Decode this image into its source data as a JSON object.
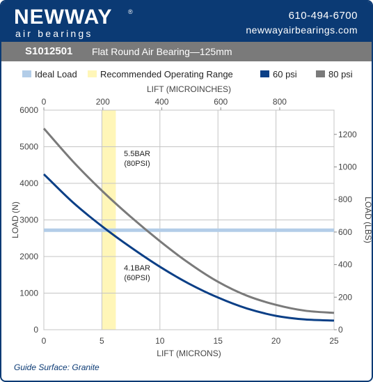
{
  "header": {
    "logo_text": "NEWWAY",
    "logo_reg": "®",
    "logo_sub": "air bearings",
    "phone": "610-494-6700",
    "website": "newwayairbearings.com"
  },
  "title": {
    "part_number": "S1012501",
    "description": "Flat Round Air Bearing—125mm"
  },
  "legend": [
    {
      "label": "Ideal Load",
      "color": "#b3cde8"
    },
    {
      "label": "Recommended Operating Range",
      "color": "#fff6b8"
    },
    {
      "label": "60 psi",
      "color": "#0b3f86"
    },
    {
      "label": "80 psi",
      "color": "#7a7a7a"
    }
  ],
  "footer": "Guide Surface: Granite",
  "chart_data": {
    "type": "line",
    "xlabel": "LIFT (MICRONS)",
    "xlim": [
      0,
      25
    ],
    "x_ticks": [
      0,
      5,
      10,
      15,
      20,
      25
    ],
    "ylabel": "LOAD (N)",
    "ylim": [
      0,
      6000
    ],
    "y_ticks": [
      0,
      1000,
      2000,
      3000,
      4000,
      5000,
      6000
    ],
    "top_axis": {
      "label": "LIFT (MICROINCHES)",
      "ticks": [
        0,
        200,
        400,
        600,
        800
      ],
      "per_micron": 39.37
    },
    "right_axis": {
      "label": "LOAD (LBS)",
      "ticks": [
        0,
        200,
        400,
        600,
        800,
        1000,
        1200
      ],
      "per_newton": 0.2248
    },
    "grid": true,
    "ideal_load": 2720,
    "operating_range": [
      5,
      6.2
    ],
    "series": [
      {
        "name": "60 psi",
        "label": [
          "4.1BAR",
          "(60PSI)"
        ],
        "color": "#0b3f86",
        "x": [
          0,
          2.5,
          5,
          7.5,
          10,
          12.5,
          15,
          17.5,
          20,
          22.5,
          25
        ],
        "y": [
          4250,
          3480,
          2830,
          2250,
          1720,
          1260,
          880,
          580,
          380,
          280,
          250
        ]
      },
      {
        "name": "80 psi",
        "label": [
          "5.5BAR",
          "(80PSI)"
        ],
        "color": "#7a7a7a",
        "x": [
          0,
          2.5,
          5,
          7.5,
          10,
          12.5,
          15,
          17.5,
          20,
          22.5,
          25
        ],
        "y": [
          5500,
          4600,
          3800,
          3080,
          2420,
          1820,
          1310,
          930,
          680,
          520,
          460
        ]
      }
    ]
  }
}
